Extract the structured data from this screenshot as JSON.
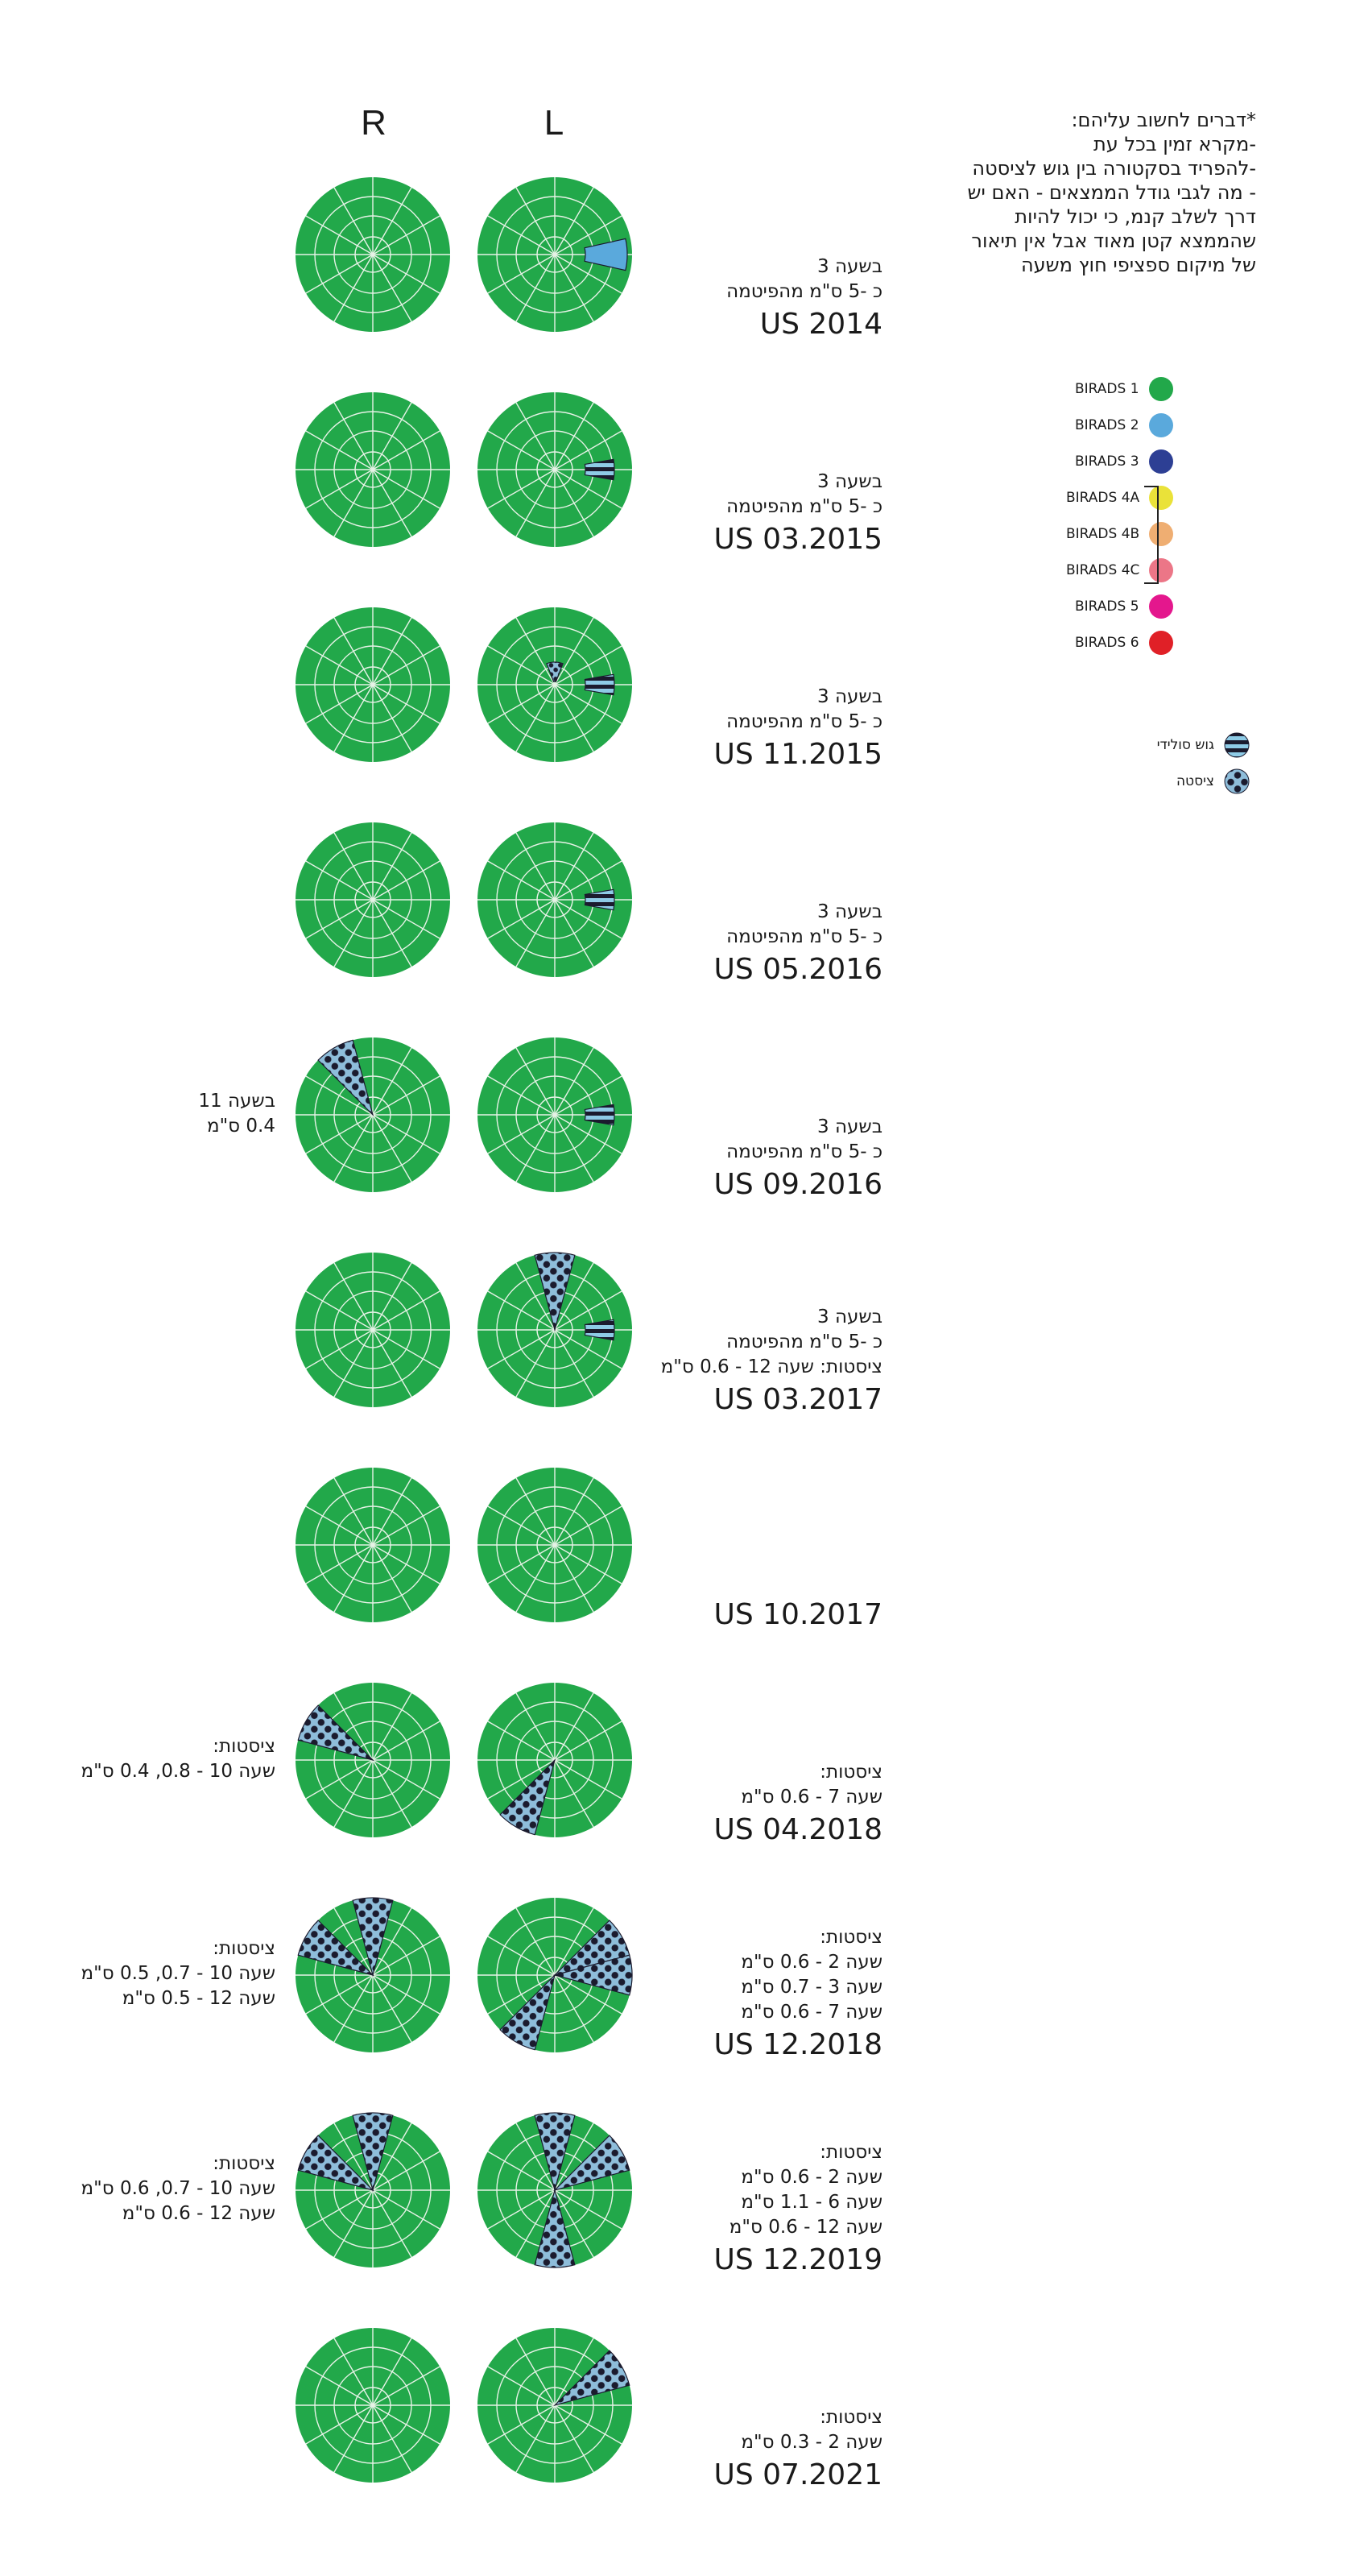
{
  "columns": {
    "right": "R",
    "left": "L"
  },
  "important_notes": [
    "*דברים לחשוב עליהם:",
    "-מקרא זמין בכל עת",
    "-להפריד בסקטורה בין גוש לציסטה",
    "- מה לגבי גודל הממצאים - האם יש",
    "דרך לשלב קנמ, כי יכול להיות",
    "שהממצא קטן מאוד אבל אין תיאור",
    "של מיקום ספציפי חוץ משעה"
  ],
  "legend": [
    {
      "label": "BIRADS 1",
      "color": "#22a84a"
    },
    {
      "label": "BIRADS 2",
      "color": "#5aa9dc"
    },
    {
      "label": "BIRADS 3",
      "color": "#2d3f94"
    },
    {
      "label": "BIRADS 4A",
      "color": "#eae239"
    },
    {
      "label": "BIRADS 4B",
      "color": "#efae72"
    },
    {
      "label": "BIRADS 4C",
      "color": "#ec7687"
    },
    {
      "label": "BIRADS 5",
      "color": "#e4178d"
    },
    {
      "label": "BIRADS 6",
      "color": "#e02027"
    }
  ],
  "finding_types": {
    "solid": "גוש סולידי",
    "cyst": "ציסטה"
  },
  "colors": {
    "base": "#22a84a",
    "grid": "#e6f2e6",
    "solid_fill": "#8ecbe6",
    "cyst_fill": "#8ebdda",
    "ink": "#1b1b2e",
    "birads2": "#5aa9dc"
  },
  "visits": [
    {
      "title": "US 2014",
      "note": [
        "בשעה 3",
        "כ -5 ס\"מ מהפיטמה"
      ],
      "right_note": [],
      "right_findings": [],
      "left_findings": [
        {
          "kind": "birads2",
          "hours": [
            3
          ]
        }
      ]
    },
    {
      "title": "US 03.2015",
      "note": [
        "בשעה 3",
        "כ -5 ס\"מ מהפיטמה"
      ],
      "right_note": [],
      "right_findings": [],
      "left_findings": [
        {
          "kind": "solid",
          "hours": [
            3
          ]
        }
      ]
    },
    {
      "title": "US 11.2015",
      "note": [
        "בשעה 3",
        "כ -5 ס\"מ מהפיטמה"
      ],
      "right_note": [],
      "right_findings": [],
      "left_findings": [
        {
          "kind": "solid",
          "hours": [
            3
          ]
        },
        {
          "kind": "cyst_small",
          "hours": [
            12
          ]
        }
      ]
    },
    {
      "title": "US 05.2016",
      "note": [
        "בשעה 3",
        "כ -5 ס\"מ מהפיטמה"
      ],
      "right_note": [],
      "right_findings": [],
      "left_findings": [
        {
          "kind": "solid",
          "hours": [
            3
          ]
        }
      ]
    },
    {
      "title": "US 09.2016",
      "note": [
        "בשעה 3",
        "כ -5 ס\"מ מהפיטמה"
      ],
      "right_note": [
        "בשעה 11",
        "0.4 ס\"מ"
      ],
      "right_findings": [
        {
          "kind": "cyst",
          "hours": [
            11
          ]
        }
      ],
      "left_findings": [
        {
          "kind": "solid",
          "hours": [
            3
          ]
        }
      ]
    },
    {
      "title": "US 03.2017",
      "note": [
        "בשעה 3",
        "כ -5 ס\"מ מהפיטמה",
        "ציסטות: שעה 12 - 0.6 ס\"מ"
      ],
      "right_note": [],
      "right_findings": [],
      "left_findings": [
        {
          "kind": "solid",
          "hours": [
            3
          ]
        },
        {
          "kind": "cyst",
          "hours": [
            12
          ]
        }
      ]
    },
    {
      "title": "US 10.2017",
      "note": [],
      "right_note": [],
      "right_findings": [],
      "left_findings": []
    },
    {
      "title": "US 04.2018",
      "note": [
        "ציסטות:",
        "שעה 7 - 0.6 ס\"מ"
      ],
      "right_note": [
        "ציסטות:",
        "שעה 10 - 0.8, 0.4 ס\"מ"
      ],
      "right_findings": [
        {
          "kind": "cyst",
          "hours": [
            10
          ]
        }
      ],
      "left_findings": [
        {
          "kind": "cyst",
          "hours": [
            7
          ]
        }
      ]
    },
    {
      "title": "US 12.2018",
      "note": [
        "ציסטות:",
        "שעה 2 - 0.6 ס\"מ",
        "שעה 3 - 0.7 ס\"מ",
        "שעה 7 - 0.6 ס\"מ"
      ],
      "right_note": [
        "ציסטות:",
        "שעה 10 - 0.7, 0.5 ס\"מ",
        "שעה 12 - 0.5 ס\"מ"
      ],
      "right_findings": [
        {
          "kind": "cyst",
          "hours": [
            10,
            12
          ]
        }
      ],
      "left_findings": [
        {
          "kind": "cyst",
          "hours": [
            2,
            3,
            7
          ]
        }
      ]
    },
    {
      "title": "US 12.2019",
      "note": [
        "ציסטות:",
        "שעה 2 - 0.6 ס\"מ",
        "שעה 6 - 1.1 ס\"מ",
        "שעה 12 - 0.6 ס\"מ"
      ],
      "right_note": [
        "ציסטות:",
        "שעה 10 - 0.7, 0.6 ס\"מ",
        "שעה 12 - 0.6 ס\"מ"
      ],
      "right_findings": [
        {
          "kind": "cyst",
          "hours": [
            10,
            12
          ]
        }
      ],
      "left_findings": [
        {
          "kind": "cyst",
          "hours": [
            2,
            6,
            12
          ]
        }
      ]
    },
    {
      "title": "US 07.2021",
      "note": [
        "ציסטות:",
        "שעה 2 - 0.3 ס\"מ"
      ],
      "right_note": [],
      "right_findings": [],
      "left_findings": [
        {
          "kind": "cyst",
          "hours": [
            2
          ]
        }
      ]
    }
  ]
}
